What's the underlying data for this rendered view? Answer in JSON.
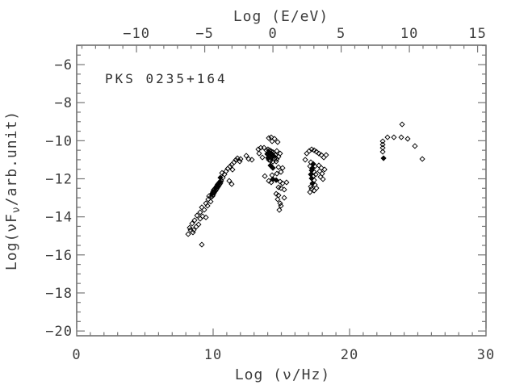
{
  "chart_data": {
    "type": "scatter",
    "annotation": "PKS 0235+164",
    "xlabel": "Log (ν/Hz)",
    "ylabel_parts": {
      "pre": "Log(νF",
      "sub": "ν",
      "post": "/arb.unit)"
    },
    "xlim": [
      0,
      30
    ],
    "ylim": [
      -20.25,
      -4.98
    ],
    "grid": false,
    "legend": "none",
    "marker": "open-diamond",
    "x_ticks": [
      [
        0,
        "0"
      ],
      [
        10,
        "10"
      ],
      [
        20,
        "20"
      ],
      [
        30,
        "30"
      ]
    ],
    "x_minor_step": 1,
    "y_ticks": [
      [
        -6,
        "−6"
      ],
      [
        -8,
        "−8"
      ],
      [
        -10,
        "−10"
      ],
      [
        -12,
        "−12"
      ],
      [
        -14,
        "−14"
      ],
      [
        -16,
        "−16"
      ],
      [
        -18,
        "−18"
      ],
      [
        -20,
        "−20"
      ]
    ],
    "y_minor_step": 0.5,
    "top_axis": {
      "label": "Log (E/eV)",
      "ticks": [
        [
          -10,
          "−10"
        ],
        [
          -5,
          "−5"
        ],
        [
          0,
          "0"
        ],
        [
          5,
          "5"
        ],
        [
          10,
          "10"
        ],
        [
          15,
          "15"
        ]
      ],
      "minor_step": 1,
      "offset_lognu_minus_logE": 14.3835
    },
    "points": [
      [
        8.17,
        -14.91
      ],
      [
        8.28,
        -14.57
      ],
      [
        8.34,
        -14.69
      ],
      [
        8.46,
        -14.35
      ],
      [
        8.52,
        -14.82
      ],
      [
        8.58,
        -14.69
      ],
      [
        8.64,
        -14.18
      ],
      [
        8.76,
        -14.52
      ],
      [
        8.82,
        -13.93
      ],
      [
        8.93,
        -14.4
      ],
      [
        9.05,
        -14.1
      ],
      [
        9.05,
        -13.76
      ],
      [
        9.17,
        -15.46
      ],
      [
        9.17,
        -13.5
      ],
      [
        9.23,
        -13.97
      ],
      [
        9.35,
        -13.63
      ],
      [
        9.47,
        -14.03
      ],
      [
        9.47,
        -13.29
      ],
      [
        9.59,
        -13.42
      ],
      [
        9.64,
        -13.08
      ],
      [
        9.7,
        -12.91
      ],
      [
        9.82,
        -13.2
      ],
      [
        9.85,
        -12.95
      ],
      [
        9.9,
        -12.8,
        1
      ],
      [
        9.94,
        -12.92
      ],
      [
        9.98,
        -12.7,
        1
      ],
      [
        10.0,
        -12.85
      ],
      [
        10.03,
        -12.6
      ],
      [
        10.06,
        -12.75,
        1
      ],
      [
        10.09,
        -12.55
      ],
      [
        10.12,
        -12.68,
        1
      ],
      [
        10.15,
        -12.5
      ],
      [
        10.18,
        -12.62
      ],
      [
        10.21,
        -12.45,
        1
      ],
      [
        10.24,
        -12.55
      ],
      [
        10.27,
        -12.38,
        1
      ],
      [
        10.3,
        -12.48
      ],
      [
        10.33,
        -12.3
      ],
      [
        10.36,
        -12.42,
        1
      ],
      [
        10.39,
        -12.25
      ],
      [
        10.42,
        -12.35
      ],
      [
        10.45,
        -12.2,
        1
      ],
      [
        10.48,
        -12.28
      ],
      [
        10.51,
        -12.15
      ],
      [
        10.54,
        -12.22
      ],
      [
        10.57,
        -12.1
      ],
      [
        10.53,
        -11.94,
        1
      ],
      [
        10.59,
        -12.11
      ],
      [
        10.65,
        -11.69
      ],
      [
        10.71,
        -11.94
      ],
      [
        10.83,
        -11.77
      ],
      [
        10.95,
        -11.6
      ],
      [
        11.07,
        -11.47
      ],
      [
        11.18,
        -12.11
      ],
      [
        11.24,
        -11.35
      ],
      [
        11.36,
        -12.28
      ],
      [
        11.36,
        -11.26
      ],
      [
        11.42,
        -11.52
      ],
      [
        11.54,
        -11.13
      ],
      [
        11.66,
        -11.01
      ],
      [
        11.78,
        -10.92
      ],
      [
        11.95,
        -11.09
      ],
      [
        12.01,
        -10.96
      ],
      [
        12.43,
        -10.79
      ],
      [
        12.6,
        -10.96
      ],
      [
        12.84,
        -11.0
      ],
      [
        13.31,
        -10.45
      ],
      [
        13.37,
        -10.67
      ],
      [
        13.49,
        -10.37
      ],
      [
        13.61,
        -10.88
      ],
      [
        13.73,
        -10.37
      ],
      [
        13.79,
        -11.86
      ],
      [
        14.08,
        -9.86
      ],
      [
        14.26,
        -9.82
      ],
      [
        14.5,
        -9.9
      ],
      [
        14.73,
        -10.07
      ],
      [
        14.32,
        -10.03
      ],
      [
        13.9,
        -10.5
      ],
      [
        13.96,
        -10.7,
        1
      ],
      [
        14.02,
        -10.45
      ],
      [
        14.02,
        -10.9,
        1
      ],
      [
        14.08,
        -10.6,
        1
      ],
      [
        14.08,
        -11.0
      ],
      [
        14.14,
        -10.5
      ],
      [
        14.14,
        -10.8,
        1
      ],
      [
        14.2,
        -10.65,
        1
      ],
      [
        14.2,
        -11.05
      ],
      [
        14.26,
        -10.55
      ],
      [
        14.26,
        -10.9,
        1
      ],
      [
        14.32,
        -10.7,
        1
      ],
      [
        14.38,
        -10.6
      ],
      [
        14.38,
        -11.1
      ],
      [
        14.44,
        -10.8,
        1
      ],
      [
        14.5,
        -10.95
      ],
      [
        14.56,
        -10.75
      ],
      [
        14.67,
        -10.54
      ],
      [
        14.91,
        -10.67
      ],
      [
        14.79,
        -10.84
      ],
      [
        14.67,
        -10.96
      ],
      [
        14.62,
        -11.09
      ],
      [
        14.2,
        -11.3,
        1
      ],
      [
        14.38,
        -11.43,
        1
      ],
      [
        14.79,
        -11.39
      ],
      [
        15.09,
        -11.43
      ],
      [
        14.97,
        -11.64
      ],
      [
        14.67,
        -11.73
      ],
      [
        14.32,
        -11.81
      ],
      [
        14.08,
        -12.11
      ],
      [
        14.26,
        -12.19
      ],
      [
        14.38,
        -12.02,
        1
      ],
      [
        14.62,
        -12.07,
        1
      ],
      [
        14.91,
        -12.15
      ],
      [
        15.09,
        -12.24
      ],
      [
        14.79,
        -12.45
      ],
      [
        14.97,
        -12.49
      ],
      [
        15.21,
        -12.57
      ],
      [
        14.62,
        -12.79
      ],
      [
        14.79,
        -12.87
      ],
      [
        15.21,
        -13.0
      ],
      [
        15.38,
        -12.19
      ],
      [
        14.73,
        -13.08
      ],
      [
        14.91,
        -13.29
      ],
      [
        14.97,
        -13.42
      ],
      [
        14.85,
        -13.64
      ],
      [
        16.86,
        -10.67
      ],
      [
        17.04,
        -10.54
      ],
      [
        17.22,
        -10.45
      ],
      [
        17.4,
        -10.5
      ],
      [
        17.57,
        -10.58
      ],
      [
        17.75,
        -10.67
      ],
      [
        17.93,
        -10.75
      ],
      [
        18.11,
        -10.88
      ],
      [
        18.28,
        -10.75
      ],
      [
        16.75,
        -11.0
      ],
      [
        17.16,
        -11.13
      ],
      [
        17.34,
        -11.22,
        1
      ],
      [
        17.1,
        -11.34
      ],
      [
        17.28,
        -11.43,
        1
      ],
      [
        17.46,
        -11.34
      ],
      [
        17.22,
        -11.56,
        1
      ],
      [
        17.4,
        -11.64
      ],
      [
        17.16,
        -11.77,
        1
      ],
      [
        17.34,
        -11.86
      ],
      [
        17.52,
        -11.77
      ],
      [
        17.22,
        -11.98,
        1
      ],
      [
        17.4,
        -12.07
      ],
      [
        17.28,
        -12.24,
        1
      ],
      [
        17.46,
        -12.32
      ],
      [
        17.16,
        -12.41
      ],
      [
        17.75,
        -11.3
      ],
      [
        17.93,
        -11.43
      ],
      [
        17.81,
        -11.6
      ],
      [
        17.99,
        -11.73
      ],
      [
        17.87,
        -11.9
      ],
      [
        18.05,
        -12.02
      ],
      [
        18.17,
        -11.51
      ],
      [
        17.22,
        -12.53
      ],
      [
        17.4,
        -12.62
      ],
      [
        17.57,
        -12.49
      ],
      [
        17.1,
        -12.7
      ],
      [
        23.85,
        -9.14
      ],
      [
        22.78,
        -9.82
      ],
      [
        23.25,
        -9.82
      ],
      [
        23.79,
        -9.82
      ],
      [
        24.26,
        -9.9
      ],
      [
        24.79,
        -10.28
      ],
      [
        22.43,
        -10.03
      ],
      [
        22.43,
        -10.2
      ],
      [
        22.43,
        -10.37
      ],
      [
        22.43,
        -10.58
      ],
      [
        22.49,
        -10.92,
        1
      ],
      [
        25.33,
        -10.96
      ]
    ]
  }
}
